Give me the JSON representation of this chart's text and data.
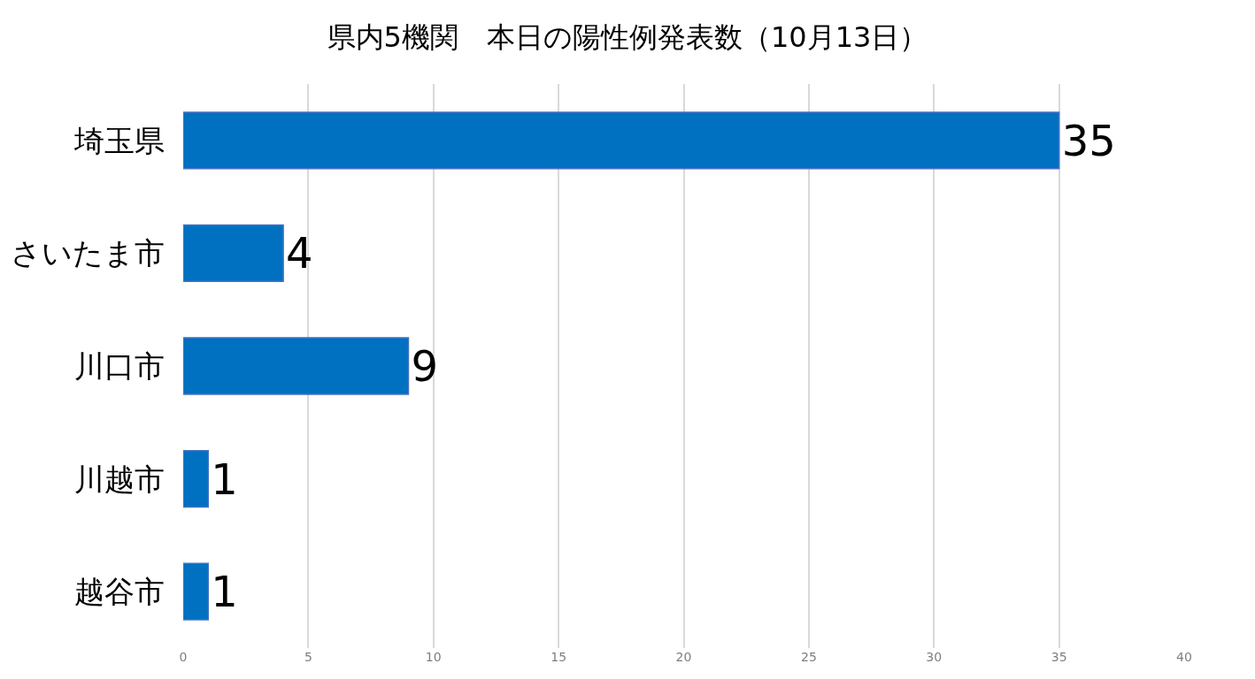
{
  "chart_data": {
    "type": "bar",
    "orientation": "horizontal",
    "title": "県内5機関　本日の陽性例発表数（10月13日）",
    "categories": [
      "埼玉県",
      "さいたま市",
      "川口市",
      "川越市",
      "越谷市"
    ],
    "values": [
      35,
      4,
      9,
      1,
      1
    ],
    "color": "#0070c0",
    "xlim": [
      0,
      40
    ],
    "xticks": [
      0,
      5,
      10,
      15,
      20,
      25,
      30,
      35,
      40
    ],
    "grid": "x",
    "data_labels": true
  }
}
